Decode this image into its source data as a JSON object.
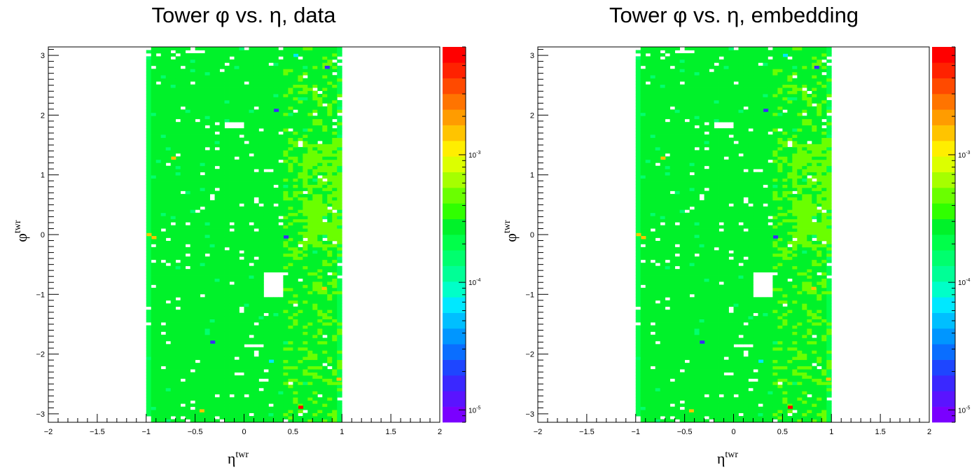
{
  "chart_data": [
    {
      "type": "heatmap",
      "title": "Tower φ vs. η, data",
      "xlabel_base": "η",
      "xlabel_sup": "twr",
      "ylabel_base": "φ",
      "ylabel_sup": "twr",
      "xlim": [
        -2,
        2
      ],
      "ylim": [
        -3.14159,
        3.14159
      ],
      "x_tick_labels": [
        "−2",
        "−1.5",
        "−1",
        "−0.5",
        "0",
        "0.5",
        "1",
        "1.5",
        "2"
      ],
      "x_tick_values": [
        -2,
        -1.5,
        -1,
        -0.5,
        0,
        0.5,
        1,
        1.5,
        2
      ],
      "y_tick_labels": [
        "−3",
        "−2",
        "−1",
        "0",
        "1",
        "2",
        "3"
      ],
      "y_tick_values": [
        -3,
        -2,
        -1,
        0,
        1,
        2,
        3
      ],
      "z_scale": "log",
      "zlim": [
        8e-06,
        0.007
      ],
      "colorbar_labels": [
        {
          "base": "10",
          "exp": "-3",
          "value": 0.001
        },
        {
          "base": "10",
          "exp": "-4",
          "value": 0.0001
        },
        {
          "base": "10",
          "exp": "-5",
          "value": 1e-05
        }
      ],
      "filled_region": {
        "eta": [
          -1,
          1
        ],
        "phi": [
          -3.14159,
          3.14159
        ]
      },
      "bins": {
        "eta": 40,
        "phi": 120
      },
      "typical_value": 0.0003,
      "edge_value": 0.00018,
      "dense_region": {
        "eta": [
          0.6,
          0.98
        ],
        "phi": [
          -0.2,
          1.5
        ],
        "value": 0.0005
      },
      "empty_regions": [
        {
          "eta": [
            0.2,
            0.4
          ],
          "phi": [
            -1.05,
            -0.62
          ]
        },
        {
          "eta": [
            -0.18,
            0.0
          ],
          "phi": [
            1.8,
            1.87
          ]
        },
        {
          "eta": [
            -0.6,
            -0.38
          ],
          "phi": [
            3.04,
            3.1
          ]
        },
        {
          "eta": [
            0.0,
            0.18
          ],
          "phi": [
            -1.91,
            -1.85
          ]
        }
      ],
      "outlier_bins": [
        {
          "eta": 0.33,
          "phi": 2.08,
          "value": 1.5e-05
        },
        {
          "eta": 0.85,
          "phi": 2.8,
          "value": 1.5e-05
        },
        {
          "eta": 0.43,
          "phi": -0.04,
          "value": 1.5e-05
        },
        {
          "eta": -0.32,
          "phi": -1.8,
          "value": 1.5e-05
        },
        {
          "eta": 0.58,
          "phi": -2.89,
          "value": 0.006
        },
        {
          "eta": -0.97,
          "phi": 0.0,
          "value": 0.0015
        },
        {
          "eta": -0.92,
          "phi": -0.05,
          "value": 0.0015
        },
        {
          "eta": -0.72,
          "phi": 1.28,
          "value": 0.0014
        },
        {
          "eta": 0.82,
          "phi": -0.9,
          "value": 0.0015
        },
        {
          "eta": 0.97,
          "phi": -2.42,
          "value": 0.0015
        },
        {
          "eta": -0.43,
          "phi": -2.95,
          "value": 0.0014
        },
        {
          "eta": 0.28,
          "phi": -2.12,
          "value": 7e-05
        },
        {
          "eta": 0.53,
          "phi": 3.0,
          "value": 7e-05
        }
      ]
    },
    {
      "type": "heatmap",
      "title": "Tower φ vs. η, embedding",
      "xlabel_base": "η",
      "xlabel_sup": "twr",
      "ylabel_base": "φ",
      "ylabel_sup": "twr",
      "xlim": [
        -2,
        2
      ],
      "ylim": [
        -3.14159,
        3.14159
      ],
      "x_tick_labels": [
        "−2",
        "−1.5",
        "−1",
        "−0.5",
        "0",
        "0.5",
        "1",
        "1.5",
        "2"
      ],
      "x_tick_values": [
        -2,
        -1.5,
        -1,
        -0.5,
        0,
        0.5,
        1,
        1.5,
        2
      ],
      "y_tick_labels": [
        "−3",
        "−2",
        "−1",
        "0",
        "1",
        "2",
        "3"
      ],
      "y_tick_values": [
        -3,
        -2,
        -1,
        0,
        1,
        2,
        3
      ],
      "z_scale": "log",
      "zlim": [
        8e-06,
        0.007
      ],
      "colorbar_labels": [
        {
          "base": "10",
          "exp": "-3",
          "value": 0.001
        },
        {
          "base": "10",
          "exp": "-4",
          "value": 0.0001
        },
        {
          "base": "10",
          "exp": "-5",
          "value": 1e-05
        }
      ],
      "filled_region": {
        "eta": [
          -1,
          1
        ],
        "phi": [
          -3.14159,
          3.14159
        ]
      },
      "bins": {
        "eta": 40,
        "phi": 120
      },
      "typical_value": 0.0003,
      "edge_value": 0.00018,
      "dense_region": {
        "eta": [
          0.6,
          0.98
        ],
        "phi": [
          -0.2,
          1.5
        ],
        "value": 0.0005
      },
      "empty_regions": [
        {
          "eta": [
            0.2,
            0.4
          ],
          "phi": [
            -1.05,
            -0.62
          ]
        },
        {
          "eta": [
            -0.18,
            0.0
          ],
          "phi": [
            1.8,
            1.87
          ]
        },
        {
          "eta": [
            -0.6,
            -0.38
          ],
          "phi": [
            3.04,
            3.1
          ]
        },
        {
          "eta": [
            0.0,
            0.18
          ],
          "phi": [
            -1.91,
            -1.85
          ]
        }
      ],
      "outlier_bins": [
        {
          "eta": 0.33,
          "phi": 2.08,
          "value": 1.5e-05
        },
        {
          "eta": 0.85,
          "phi": 2.8,
          "value": 1.5e-05
        },
        {
          "eta": 0.43,
          "phi": -0.04,
          "value": 1.5e-05
        },
        {
          "eta": -0.32,
          "phi": -1.8,
          "value": 1.5e-05
        },
        {
          "eta": 0.58,
          "phi": -2.89,
          "value": 0.006
        },
        {
          "eta": -0.97,
          "phi": 0.0,
          "value": 0.0015
        },
        {
          "eta": -0.92,
          "phi": -0.05,
          "value": 0.0015
        },
        {
          "eta": -0.72,
          "phi": 1.28,
          "value": 0.0014
        },
        {
          "eta": 0.82,
          "phi": -0.9,
          "value": 0.0015
        },
        {
          "eta": 0.97,
          "phi": -2.42,
          "value": 0.0015
        },
        {
          "eta": -0.43,
          "phi": -2.95,
          "value": 0.0014
        },
        {
          "eta": 0.28,
          "phi": -2.12,
          "value": 7e-05
        },
        {
          "eta": 0.53,
          "phi": 3.0,
          "value": 7e-05
        }
      ]
    }
  ],
  "colors": {
    "palette": [
      "#7a00ff",
      "#5a14ff",
      "#3a28ff",
      "#1e46ff",
      "#0a6eff",
      "#0096ff",
      "#00bfff",
      "#00e8ff",
      "#00ffc8",
      "#00ff96",
      "#00ff6e",
      "#00ff4a",
      "#00f22a",
      "#30ff00",
      "#6aff00",
      "#a6ff00",
      "#dcff00",
      "#ffee00",
      "#ffc400",
      "#ff9c00",
      "#ff7400",
      "#ff4a00",
      "#ff2200",
      "#ff0000"
    ]
  }
}
